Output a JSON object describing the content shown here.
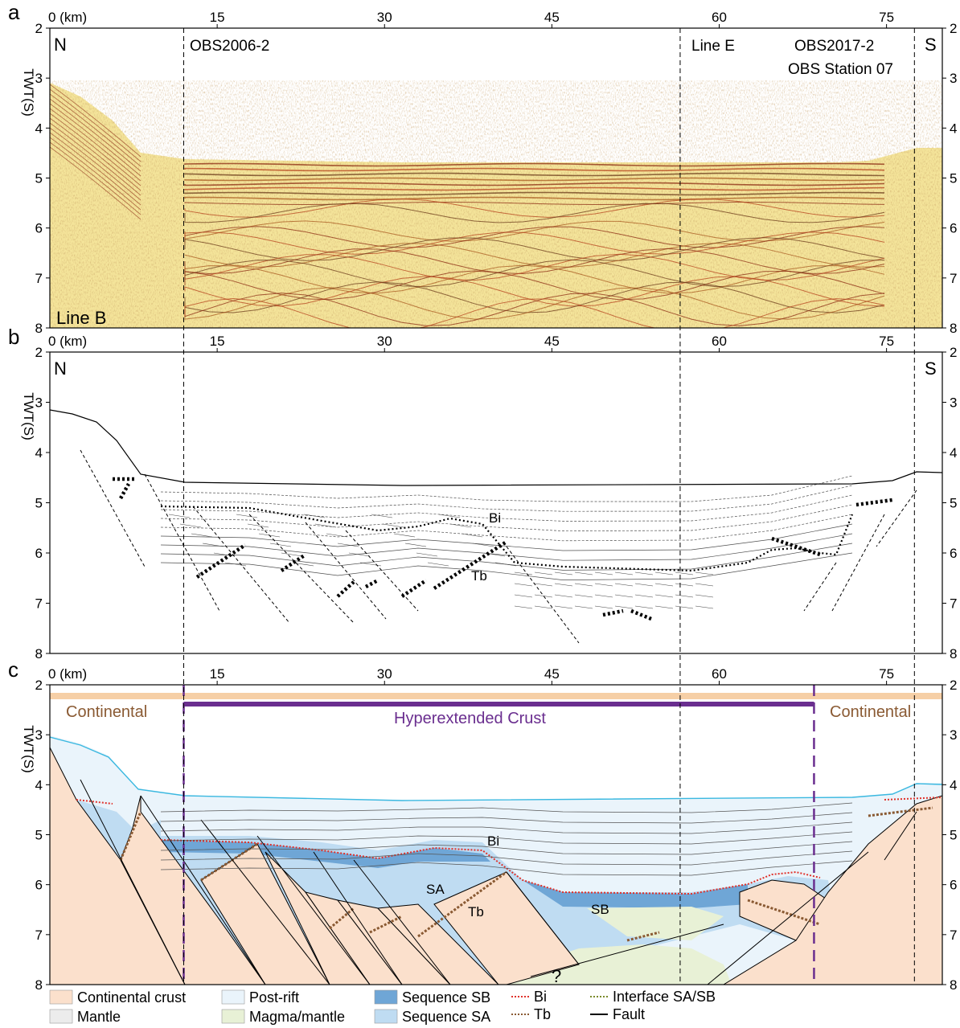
{
  "panels": [
    {
      "letter": "a",
      "left_dir": "N",
      "right_dir": "S",
      "corner_label": "Line B"
    },
    {
      "letter": "b",
      "left_dir": "N",
      "right_dir": "S"
    },
    {
      "letter": "c"
    }
  ],
  "axes": {
    "x_first_tick": "0 (km)",
    "x_ticks": [
      "15",
      "30",
      "45",
      "60",
      "75"
    ],
    "x_tick_values": [
      15,
      30,
      45,
      60,
      75
    ],
    "x_range": [
      0,
      80
    ],
    "y_label": "TWT(S)",
    "y_ticks": [
      "2",
      "3",
      "4",
      "5",
      "6",
      "7",
      "8"
    ],
    "y_range": [
      2,
      8
    ]
  },
  "reference_lines": [
    {
      "label": "OBS2006-2",
      "km": 12
    },
    {
      "label": "Line E",
      "km": 56.5
    },
    {
      "label": "OBS2017-2\nOBS Station 07",
      "km": 77.5
    }
  ],
  "panel_b_labels": {
    "bi": "Bi",
    "tb": "Tb"
  },
  "panel_c_labels": {
    "continental_left": "Continental",
    "continental_right": "Continental",
    "hyperextended": "Hyperextended Crust",
    "bi": "Bi",
    "sa": "SA",
    "tb": "Tb",
    "sb": "SB",
    "question": "?"
  },
  "hyperextended_extent_km": [
    12,
    68.5
  ],
  "legend": [
    {
      "label": "Continental crust",
      "color": "#fbe0cc",
      "kind": "box"
    },
    {
      "label": "Mantle",
      "color": "#ececec",
      "kind": "box"
    },
    {
      "label": "Post-rift",
      "color": "#eaf4fb",
      "kind": "box"
    },
    {
      "label": "Magma/mantle",
      "color": "#e8f1d6",
      "kind": "box"
    },
    {
      "label": "Sequence SB",
      "color": "#6fa6d6",
      "kind": "box"
    },
    {
      "label": "Sequence SA",
      "color": "#bfdcf2",
      "kind": "box"
    },
    {
      "label": "Bi",
      "color": "#e0322b",
      "kind": "dotted"
    },
    {
      "label": "Tb",
      "color": "#8a5a33",
      "kind": "dotted"
    },
    {
      "label": "Interface SA/SB",
      "color": "#7a8a2a",
      "kind": "dotted"
    },
    {
      "label": "Fault",
      "color": "#000000",
      "kind": "solid"
    }
  ],
  "colors": {
    "continental_text": "#8a5a33",
    "hyperextended": "#6a2e8f",
    "bar_orange": "#f6cfa6",
    "seabed_line": "#3ab8e0",
    "seismic_bg": "#f4e49a"
  }
}
